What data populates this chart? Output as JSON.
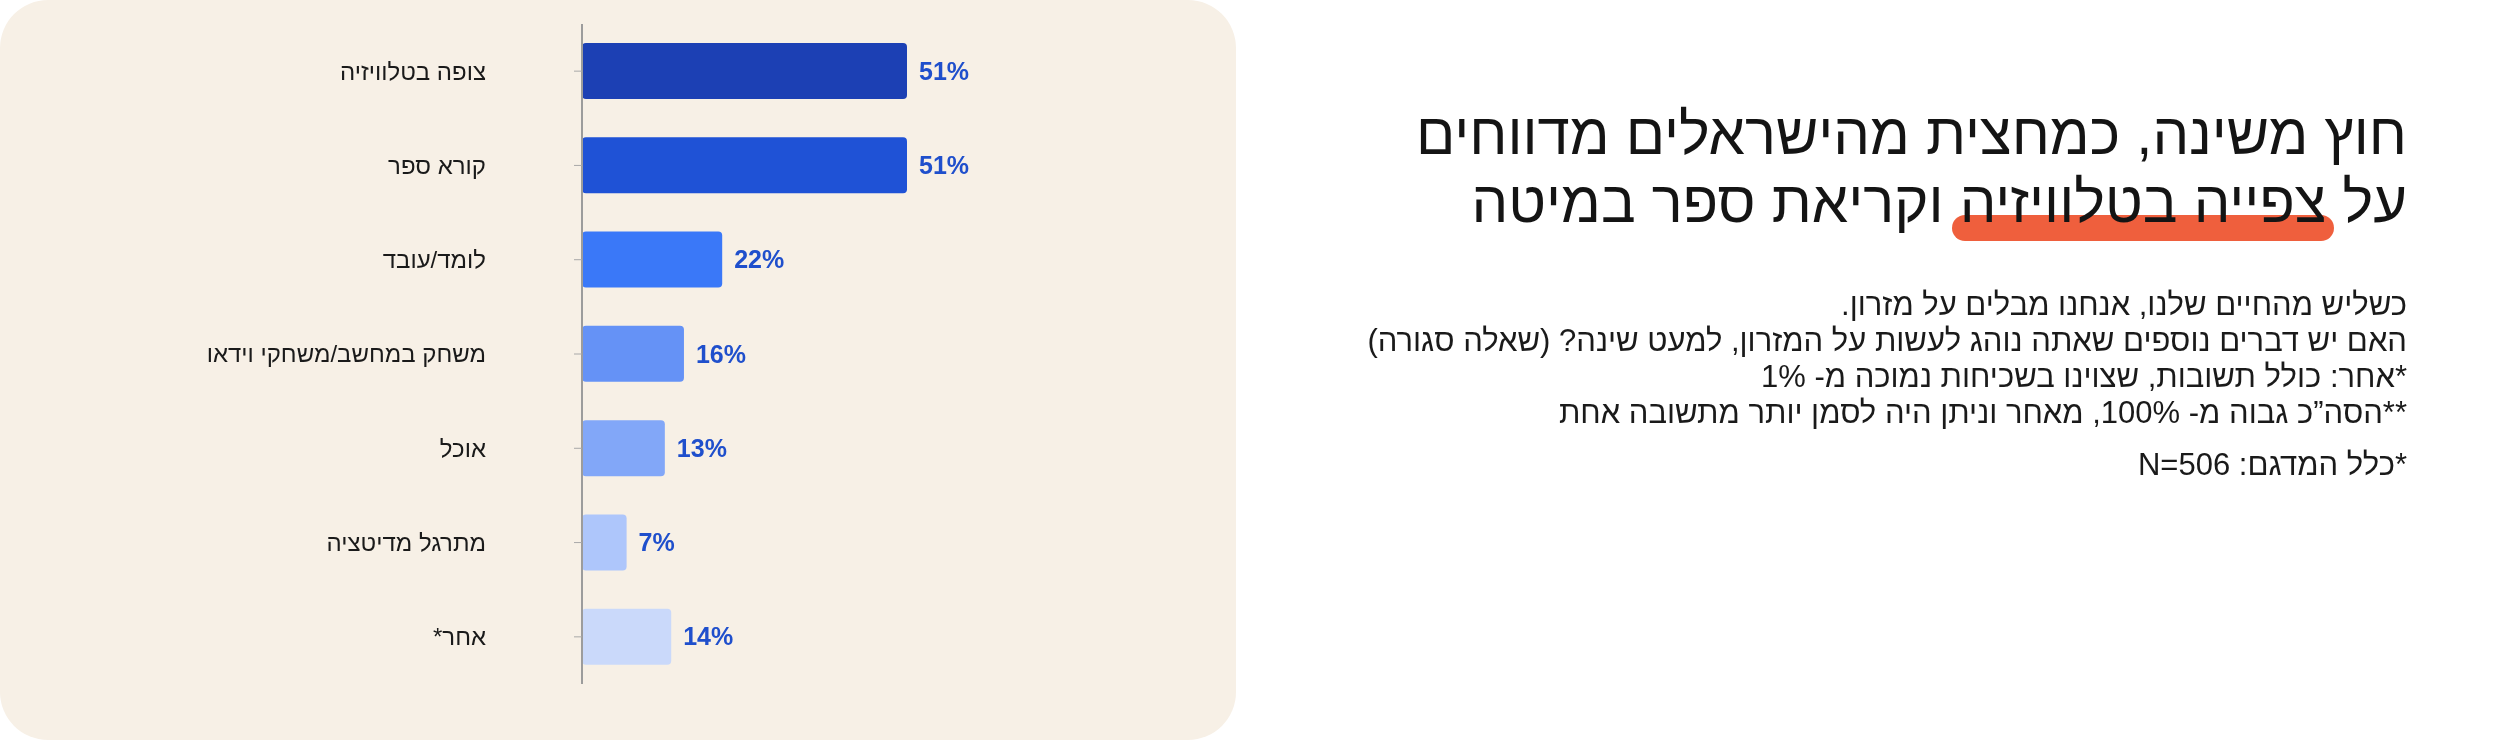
{
  "chart_data": {
    "type": "bar",
    "orientation": "horizontal",
    "title": "חוץ משינה, כמחצית מהישראלים מדווחים\nעל צפייה בטלוויזיה וקריאת ספר במיטה",
    "subtitle": "כשליש מהחיים שלנו, אנחנו מבלים על מזרון.\nהאם יש דברים נוספים שאתה נוהג לעשות על המזרון, למעט שינה? (שאלה סגורה)",
    "annotations": [
      "*אחר: כולל תשובות, שצוינו בשכיחות נמוכה מ- 1%",
      "**הסה”כ גבוה מ- 100%, מאחר וניתן היה לסמן יותר מתשובה אחת",
      "*כלל המדגם: N=506"
    ],
    "categories": [
      "צופה בטלוויזיה",
      "קורא ספר",
      "לומד/עובד",
      "משחק במחשב/משחקי וידאו",
      "אוכל",
      "מתרגל מדיטציה",
      "אחר*"
    ],
    "values": [
      51,
      51,
      22,
      16,
      13,
      7,
      14
    ],
    "colors": [
      "#1c40b4",
      "#1f52d6",
      "#3a78f8",
      "#6592f6",
      "#82a7f8",
      "#aec6fb",
      "#cad9fa"
    ],
    "value_labels": [
      "51%",
      "51%",
      "22%",
      "16%",
      "13%",
      "7%",
      "14%"
    ]
  }
}
